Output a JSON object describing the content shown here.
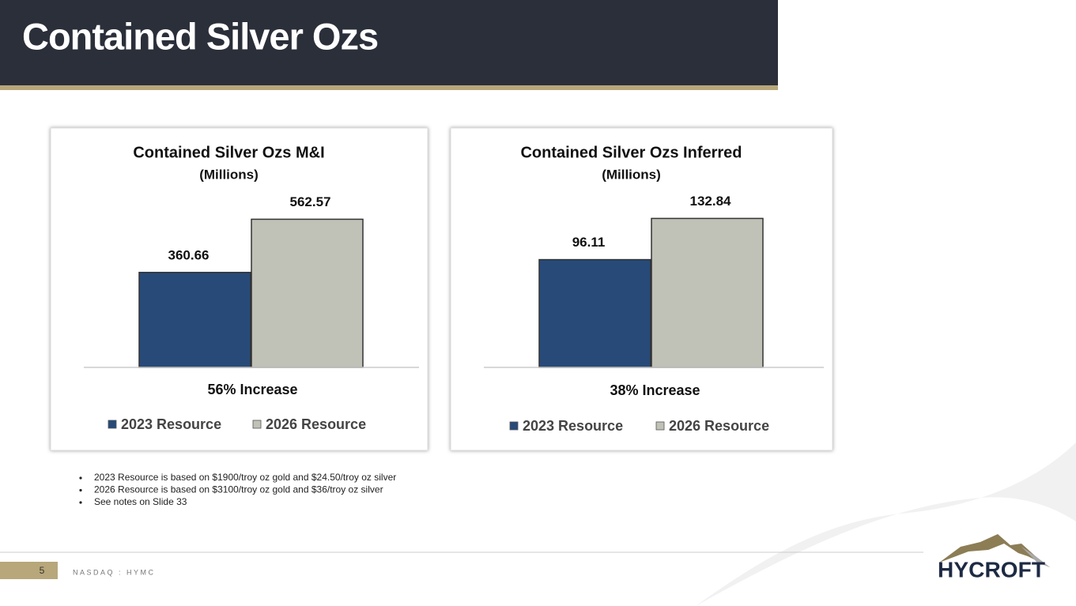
{
  "title": "Contained Silver Ozs",
  "chart_data": [
    {
      "type": "bar",
      "title": "Contained Silver Ozs M&I",
      "subtitle": "(Millions)",
      "series": [
        {
          "name": "2023 Resource",
          "color": "#274a78",
          "values": [
            360.66
          ]
        },
        {
          "name": "2026 Resource",
          "color": "#c0c1b7",
          "values": [
            562.57
          ]
        }
      ],
      "annotation": "56% Increase",
      "ylim": [
        0,
        660
      ]
    },
    {
      "type": "bar",
      "title": "Contained Silver Ozs Inferred",
      "subtitle": "(Millions)",
      "series": [
        {
          "name": "2023 Resource",
          "color": "#274a78",
          "values": [
            96.11
          ]
        },
        {
          "name": "2026 Resource",
          "color": "#c0c1b7",
          "values": [
            132.84
          ]
        }
      ],
      "annotation": "38% Increase",
      "ylim": [
        0,
        155
      ]
    }
  ],
  "notes": [
    "2023 Resource is based on $1900/troy oz gold and $24.50/troy oz silver",
    "2026 Resource is based on $3100/troy oz gold and $36/troy oz silver",
    "See notes on Slide 33"
  ],
  "footer": {
    "page": "5",
    "ticker": "NASDAQ : HYMC"
  },
  "logo": "HYCROFT"
}
